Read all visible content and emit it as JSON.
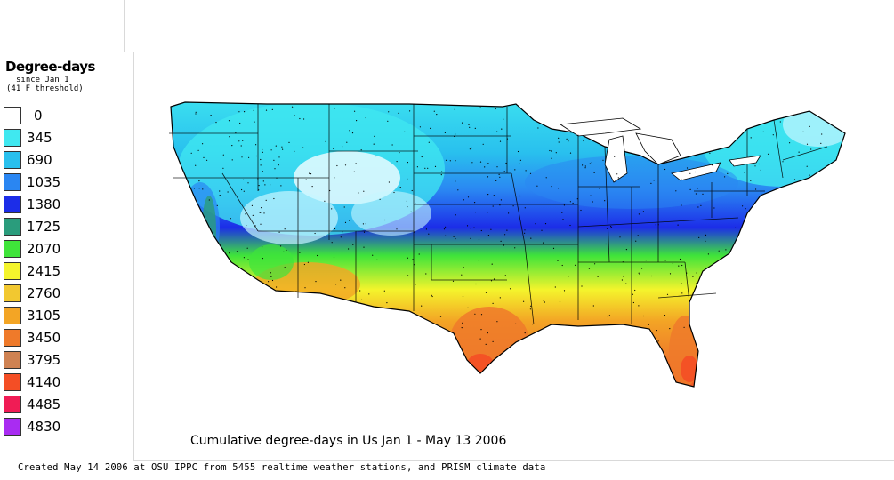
{
  "legend": {
    "title": "Degree-days",
    "subtitle_1": "since Jan 1",
    "subtitle_2": "(41 F threshold)",
    "items": [
      {
        "label": "0",
        "color": "#ffffff"
      },
      {
        "label": "345",
        "color": "#40e8f0"
      },
      {
        "label": "690",
        "color": "#29c0ee"
      },
      {
        "label": "1035",
        "color": "#2a86f2"
      },
      {
        "label": "1380",
        "color": "#1c2de8"
      },
      {
        "label": "1725",
        "color": "#2a9c7c"
      },
      {
        "label": "2070",
        "color": "#3fe43a"
      },
      {
        "label": "2415",
        "color": "#f4f42c"
      },
      {
        "label": "2760",
        "color": "#f2c830"
      },
      {
        "label": "3105",
        "color": "#f3a525"
      },
      {
        "label": "3450",
        "color": "#ef7a2a"
      },
      {
        "label": "3795",
        "color": "#cf8252"
      },
      {
        "label": "4140",
        "color": "#f44e25"
      },
      {
        "label": "4485",
        "color": "#f01c55"
      },
      {
        "label": "4830",
        "color": "#a92cf2"
      }
    ]
  },
  "map": {
    "caption": "Cumulative degree-days in Us  Jan 1 - May 13 2006"
  },
  "footer": "Created May 14 2006 at OSU IPPC from 5455 realtime weather stations, and PRISM climate data"
}
